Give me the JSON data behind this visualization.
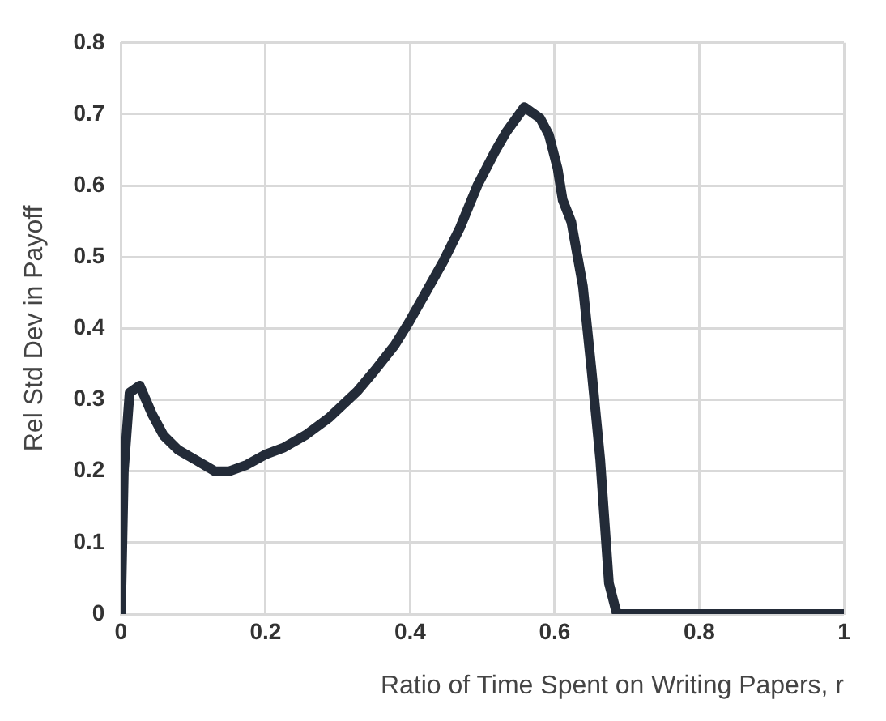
{
  "chart_data": {
    "type": "line",
    "xlabel": "Ratio of Time Spent on Writing Papers, r",
    "ylabel": "Rel Std Dev in Payoff",
    "series": [
      {
        "color": "#232b38",
        "x": [
          0,
          0.004,
          0.012,
          0.026,
          0.043,
          0.059,
          0.079,
          0.103,
          0.13,
          0.15,
          0.174,
          0.201,
          0.225,
          0.256,
          0.288,
          0.327,
          0.351,
          0.379,
          0.398,
          0.422,
          0.446,
          0.469,
          0.493,
          0.517,
          0.533,
          0.558,
          0.58,
          0.592,
          0.604,
          0.611,
          0.623,
          0.639,
          0.651,
          0.663,
          0.675,
          0.686,
          0.75,
          0.85,
          1
        ],
        "values": [
          0,
          0.2,
          0.31,
          0.32,
          0.28,
          0.25,
          0.23,
          0.216,
          0.2,
          0.2,
          0.209,
          0.224,
          0.233,
          0.251,
          0.275,
          0.312,
          0.341,
          0.377,
          0.408,
          0.451,
          0.494,
          0.541,
          0.6,
          0.647,
          0.675,
          0.71,
          0.694,
          0.671,
          0.624,
          0.58,
          0.549,
          0.459,
          0.341,
          0.216,
          0.043,
          0,
          0,
          0,
          0
        ]
      }
    ],
    "xlim": [
      0,
      1
    ],
    "xticks": [
      0,
      0.2,
      0.4,
      0.6,
      0.8,
      1
    ],
    "ylim": [
      0,
      0.8
    ],
    "yticks": [
      0,
      0.1,
      0.2,
      0.3,
      0.4,
      0.5,
      0.6,
      0.7,
      0.8
    ],
    "grid": true,
    "legend": false,
    "marker": "none",
    "line_style": "solid"
  }
}
